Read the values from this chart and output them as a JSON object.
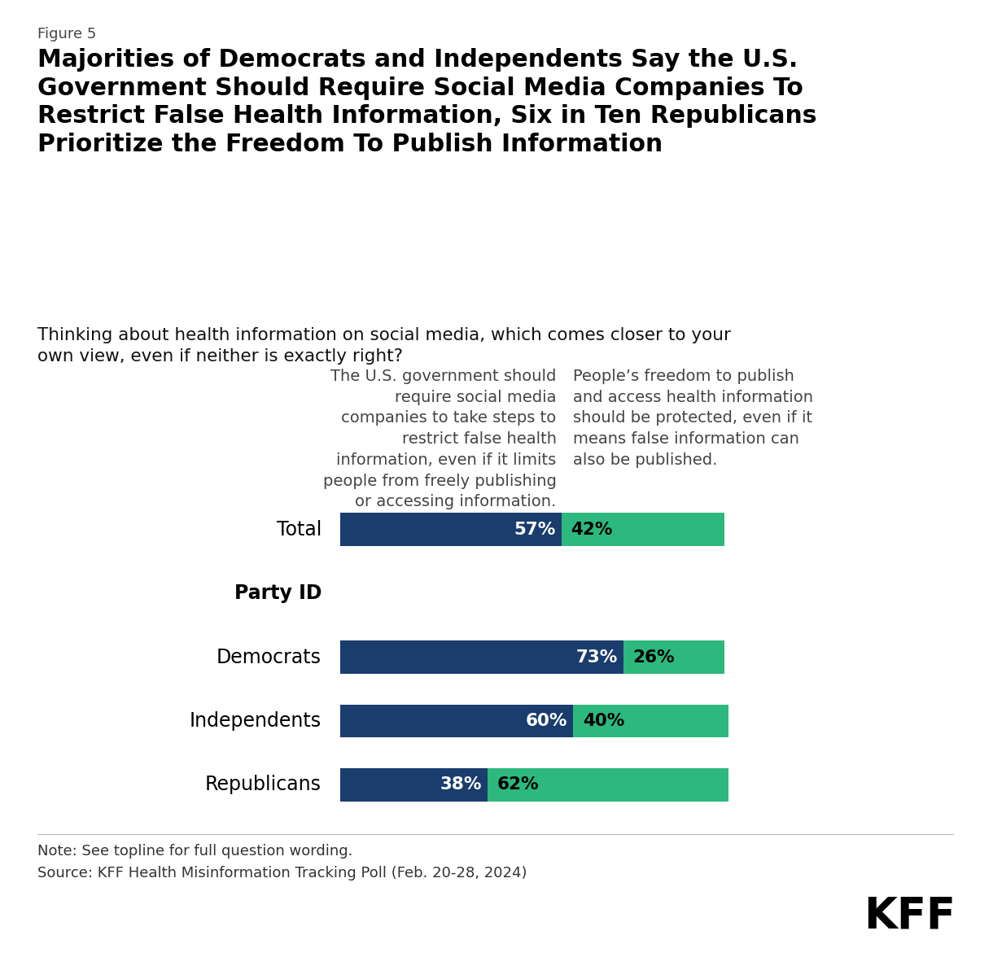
{
  "figure_label": "Figure 5",
  "title": "Majorities of Democrats and Independents Say the U.S.\nGovernment Should Require Social Media Companies To\nRestrict False Health Information, Six in Ten Republicans\nPrioritize the Freedom To Publish Information",
  "subtitle": "Thinking about health information on social media, which comes closer to your\nown view, even if neither is exactly right?",
  "col1_header": "The U.S. government should\nrequire social media\ncompanies to take steps to\nrestrict false health\ninformation, even if it limits\npeople from freely publishing\nor accessing information.",
  "col2_header": "People’s freedom to publish\nand access health information\nshould be protected, even if it\nmeans false information can\nalso be published.",
  "categories": [
    "Total",
    "Party ID",
    "Democrats",
    "Independents",
    "Republicans"
  ],
  "blue_values": [
    57,
    null,
    73,
    60,
    38
  ],
  "green_values": [
    42,
    null,
    26,
    40,
    62
  ],
  "blue_labels": [
    "57%",
    null,
    "73%",
    "60%",
    "38%"
  ],
  "green_labels": [
    "42%",
    null,
    "26%",
    "40%",
    "62%"
  ],
  "blue_color": "#1a3d6e",
  "green_color": "#2db87d",
  "background_color": "#ffffff",
  "note": "Note: See topline for full question wording.",
  "source": "Source: KFF Health Misinformation Tracking Poll (Feb. 20-28, 2024)",
  "bar_height": 0.52,
  "figsize": [
    12.2,
    11.76
  ],
  "dpi": 100,
  "bar_scale": 100,
  "bar_max_display": 100
}
